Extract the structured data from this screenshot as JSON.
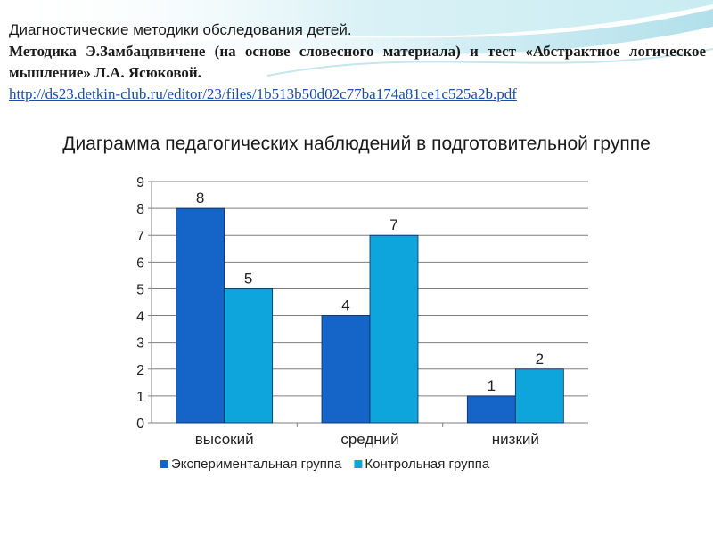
{
  "header": {
    "line1": "Диагностические методики обследования детей.",
    "line2": "Методика Э.Замбацявичене (на основе словесного материала) и тест «Абстрактное логическое мышление» Л.А. Ясюковой.",
    "url": "http://ds23.detkin-club.ru/editor/23/files/1b513b50d02c77ba174a81ce1c525a2b.pdf"
  },
  "colors": {
    "experimental": "#1565c8",
    "control": "#0ea5dd",
    "grid": "#7f7f7f"
  },
  "chart_data": {
    "type": "bar",
    "title": "Диаграмма педагогических наблюдений в подготовительной группе",
    "categories": [
      "высокий",
      "средний",
      "низкий"
    ],
    "series": [
      {
        "name": "Экспериментальная группа",
        "values": [
          8,
          4,
          1
        ]
      },
      {
        "name": "Контрольная группа",
        "values": [
          5,
          7,
          2
        ]
      }
    ],
    "ylim": [
      0,
      9
    ],
    "yticks": [
      0,
      1,
      2,
      3,
      4,
      5,
      6,
      7,
      8,
      9
    ],
    "grid": true,
    "data_labels": true,
    "legend_position": "bottom",
    "xlabel": "",
    "ylabel": ""
  }
}
